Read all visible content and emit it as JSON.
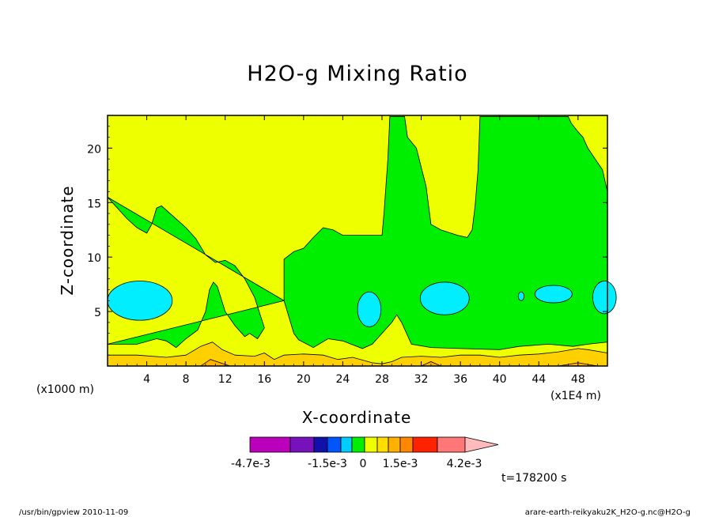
{
  "colors": {
    "background": "#ffffff",
    "frame": "#000000",
    "plot_fill": "#eeff00",
    "green": "#00ee00",
    "cyan": "#00eeff",
    "yellow": "#eeff00",
    "gold": "#ffd000",
    "orange": "#ffb000"
  },
  "chart_data": {
    "type": "contour",
    "title": "H2O-g Mixing Ratio",
    "xlabel": "X-coordinate",
    "ylabel": "Z-coordinate",
    "x_unit_left": "(x1000 m)",
    "x_unit_right": "(x1E4 m)",
    "xlim": [
      0,
      51
    ],
    "ylim": [
      0,
      23
    ],
    "x_ticks": [
      4,
      8,
      12,
      16,
      20,
      24,
      28,
      32,
      36,
      40,
      44,
      48
    ],
    "y_ticks": [
      5,
      10,
      15,
      20
    ],
    "time_label": "t=178200 s",
    "colorbar": {
      "labels": [
        "-4.7e-3",
        "-1.5e-3",
        "0",
        "1.5e-3",
        "4.2e-3"
      ],
      "colors": [
        "#bb00bb",
        "#7711bb",
        "#1111aa",
        "#0055ff",
        "#00ccff",
        "#00ee00",
        "#eeff00",
        "#ffdd00",
        "#ffb000",
        "#ff8800",
        "#ff2200",
        "#ff7777",
        "#ffbbbb"
      ]
    },
    "regions": [
      {
        "name": "green-moist-layer",
        "color": "#00ee00",
        "points": [
          [
            0,
            15.5
          ],
          [
            1,
            14.5
          ],
          [
            2,
            13.5
          ],
          [
            3,
            12.7
          ],
          [
            4,
            12.2
          ],
          [
            4.5,
            13
          ],
          [
            5,
            14.5
          ],
          [
            5.5,
            14.7
          ],
          [
            6,
            14.3
          ],
          [
            7,
            13.5
          ],
          [
            8,
            12.7
          ],
          [
            9,
            11.7
          ],
          [
            10,
            10.2
          ],
          [
            11,
            9.5
          ],
          [
            12,
            9.7
          ],
          [
            13,
            9.2
          ],
          [
            14,
            8
          ],
          [
            15,
            6.3
          ],
          [
            16,
            3.5
          ],
          [
            15.3,
            2.5
          ],
          [
            14.5,
            3
          ],
          [
            14,
            2.7
          ],
          [
            13,
            3.7
          ],
          [
            12,
            5
          ],
          [
            11.2,
            7.3
          ],
          [
            10.8,
            7.7
          ],
          [
            10.4,
            7
          ],
          [
            10,
            5
          ],
          [
            9.2,
            3.3
          ],
          [
            8,
            2.5
          ],
          [
            7,
            1.7
          ],
          [
            6,
            2.3
          ],
          [
            5,
            2.5
          ],
          [
            3,
            2
          ],
          [
            0,
            2
          ],
          [
            18,
            6
          ],
          [
            18,
            9.8
          ],
          [
            19,
            10.5
          ],
          [
            20,
            10.8
          ],
          [
            21,
            11.8
          ],
          [
            22,
            12.7
          ],
          [
            23,
            12.5
          ],
          [
            24,
            12
          ],
          [
            27,
            12
          ],
          [
            28,
            12
          ],
          [
            28.2,
            14
          ],
          [
            28.6,
            19
          ],
          [
            28.8,
            22.9
          ],
          [
            30.3,
            22.9
          ],
          [
            30.6,
            21
          ],
          [
            31.5,
            20
          ],
          [
            32.5,
            16.5
          ],
          [
            33,
            13
          ],
          [
            34,
            12.5
          ],
          [
            35.7,
            12
          ],
          [
            36.7,
            11.8
          ],
          [
            37.2,
            12.5
          ],
          [
            37.5,
            14.7
          ],
          [
            37.8,
            18
          ],
          [
            38,
            22.9
          ],
          [
            47,
            22.9
          ],
          [
            47.3,
            22.3
          ],
          [
            48,
            21.5
          ],
          [
            48.5,
            21
          ],
          [
            49,
            20
          ],
          [
            50.5,
            18
          ],
          [
            51,
            16
          ],
          [
            51,
            2.2
          ],
          [
            49,
            2
          ],
          [
            47.5,
            1.8
          ],
          [
            45,
            2
          ],
          [
            42,
            1.8
          ],
          [
            40,
            1.5
          ],
          [
            36,
            1.6
          ],
          [
            33,
            1.7
          ],
          [
            31,
            2
          ],
          [
            30,
            4
          ],
          [
            29.5,
            4.7
          ],
          [
            29,
            4
          ],
          [
            27,
            2
          ],
          [
            26,
            1.6
          ],
          [
            24,
            2.3
          ],
          [
            22.5,
            2.5
          ],
          [
            21,
            1.7
          ],
          [
            19.5,
            2.4
          ],
          [
            19,
            3
          ],
          [
            18,
            6
          ]
        ]
      },
      {
        "name": "cyan-pocket-1",
        "color": "#00eeff",
        "ellipse": [
          3.3,
          6,
          3.3,
          1.8
        ]
      },
      {
        "name": "cyan-pocket-2",
        "color": "#00eeff",
        "ellipse": [
          26.7,
          5.2,
          1.2,
          1.6
        ]
      },
      {
        "name": "cyan-pocket-3",
        "color": "#00eeff",
        "ellipse": [
          34.4,
          6.2,
          2.5,
          1.5
        ]
      },
      {
        "name": "cyan-pocket-4",
        "color": "#00eeff",
        "ellipse": [
          42.2,
          6.4,
          0.3,
          0.4
        ]
      },
      {
        "name": "cyan-pocket-5",
        "color": "#00eeff",
        "ellipse": [
          45.5,
          6.6,
          1.9,
          0.8
        ]
      },
      {
        "name": "cyan-pocket-6",
        "color": "#00eeff",
        "ellipse": [
          50.7,
          6.3,
          1.2,
          1.5
        ]
      },
      {
        "name": "gold-surface-layer",
        "color": "#ffd000",
        "points": [
          [
            0,
            1
          ],
          [
            3,
            1
          ],
          [
            6,
            0.8
          ],
          [
            8,
            1
          ],
          [
            9.5,
            1.8
          ],
          [
            10.7,
            2.2
          ],
          [
            11.7,
            1.5
          ],
          [
            13,
            1
          ],
          [
            15,
            0.9
          ],
          [
            16,
            1.2
          ],
          [
            17,
            0.6
          ],
          [
            18,
            1
          ],
          [
            20,
            1.1
          ],
          [
            22,
            1
          ],
          [
            23.5,
            0.6
          ],
          [
            25,
            0.8
          ],
          [
            27,
            0.3
          ],
          [
            28,
            0.2
          ],
          [
            29,
            0.4
          ],
          [
            30,
            0.8
          ],
          [
            32,
            0.9
          ],
          [
            34,
            0.8
          ],
          [
            36,
            1
          ],
          [
            38,
            1
          ],
          [
            40,
            0.8
          ],
          [
            42,
            1
          ],
          [
            44,
            1.1
          ],
          [
            46,
            1.3
          ],
          [
            48,
            1.6
          ],
          [
            49,
            1.5
          ],
          [
            51,
            1.2
          ],
          [
            51,
            0
          ],
          [
            0,
            0
          ]
        ]
      },
      {
        "name": "orange-surface-layer",
        "color": "#ffb000",
        "points": [
          [
            9.5,
            0
          ],
          [
            10.5,
            0.6
          ],
          [
            11.5,
            0.3
          ],
          [
            12.5,
            0
          ],
          [
            32,
            0
          ],
          [
            33,
            0.4
          ],
          [
            34,
            0
          ],
          [
            46,
            0
          ],
          [
            48,
            0.3
          ],
          [
            50,
            0
          ],
          [
            51,
            0
          ],
          [
            51,
            0
          ],
          [
            0,
            0
          ]
        ]
      }
    ]
  },
  "footer": {
    "left": "/usr/bin/gpview   2010-11-09",
    "right": "arare-earth-reikyaku2K_H2O-g.nc@H2O-g"
  }
}
